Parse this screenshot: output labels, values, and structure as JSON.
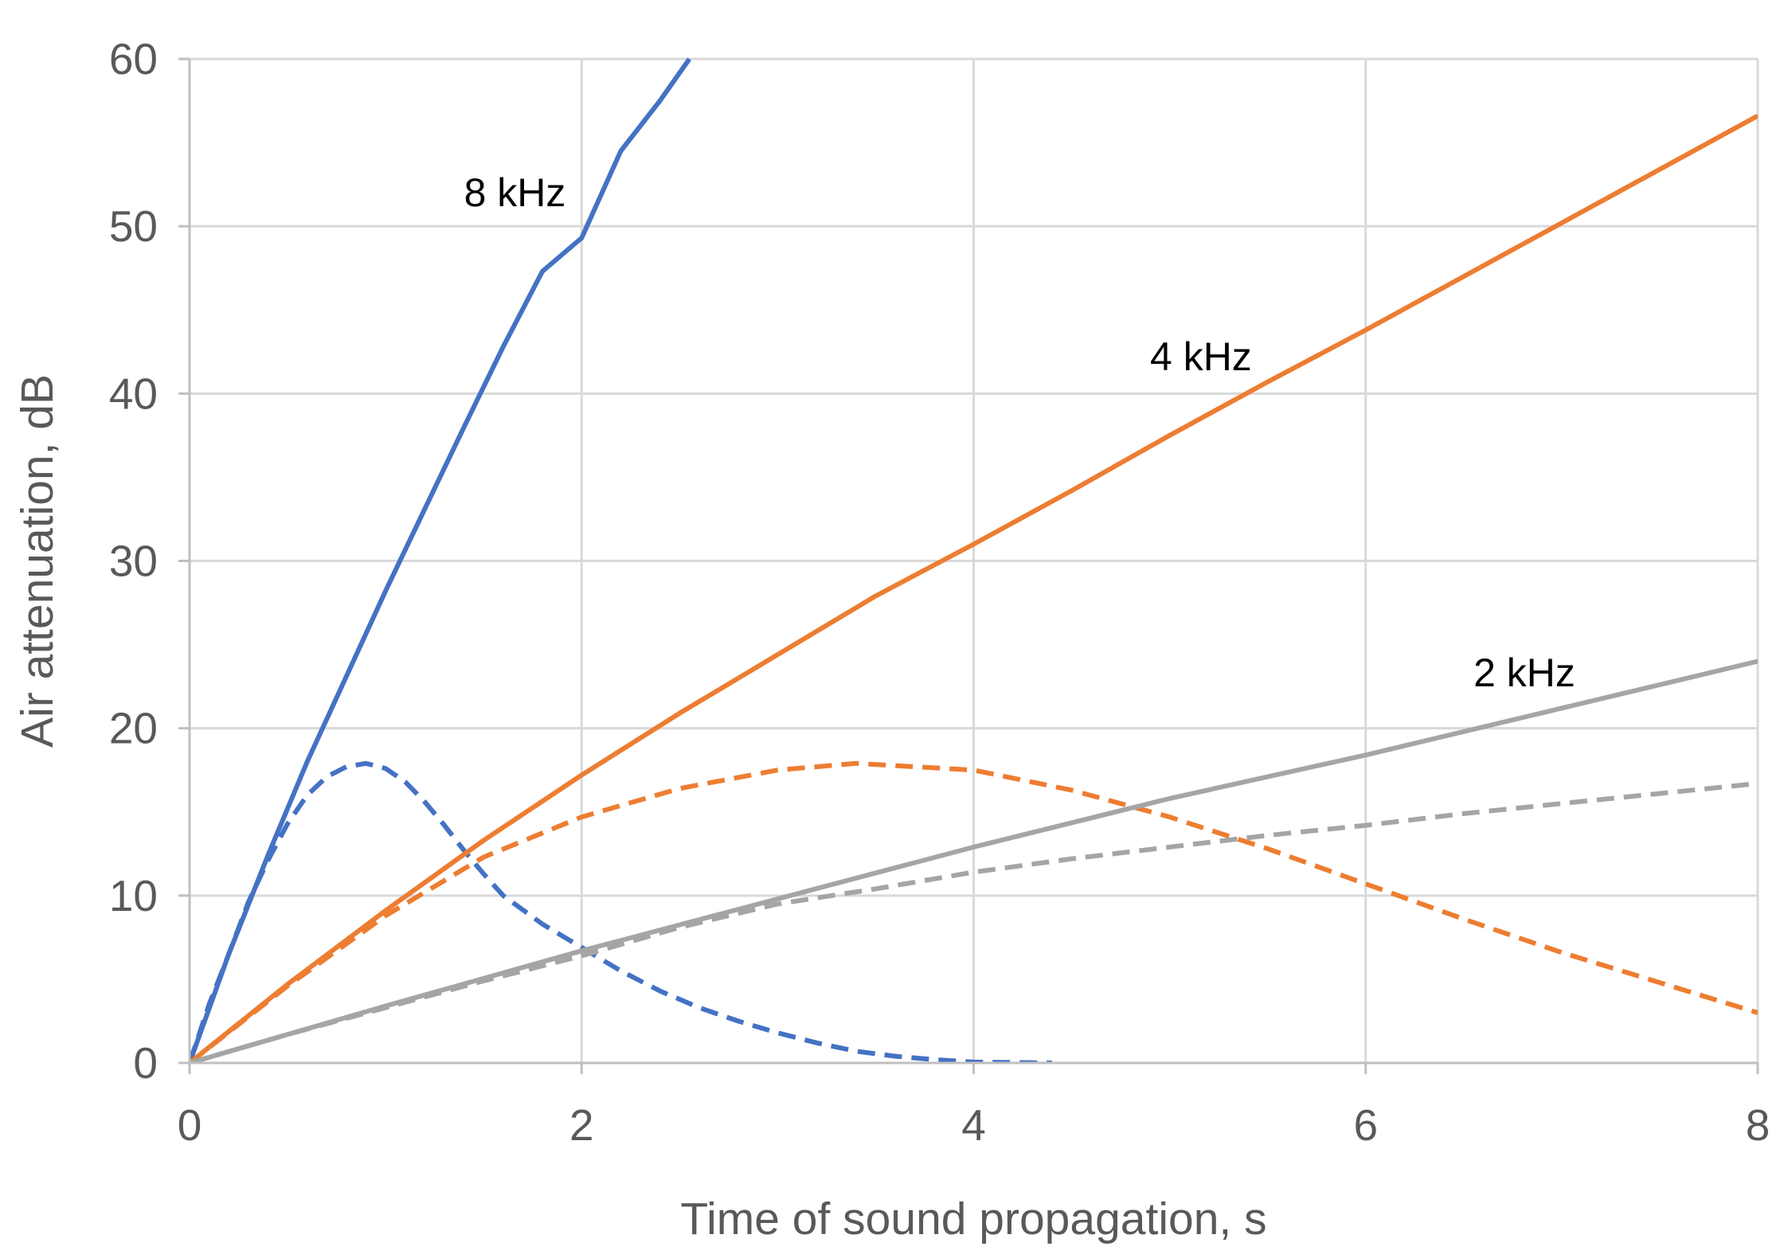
{
  "chart_data": {
    "type": "line",
    "xlabel": "Time of sound propagation, s",
    "ylabel": "Air attenuation, dB",
    "xlim": [
      0,
      8
    ],
    "ylim": [
      0,
      60
    ],
    "xticks": [
      0,
      2,
      4,
      6,
      8
    ],
    "yticks": [
      0,
      10,
      20,
      30,
      40,
      50,
      60
    ],
    "grid": true,
    "legend": "none (inline labels)",
    "series": [
      {
        "name": "8 kHz",
        "color": "#4472c4",
        "style": "solid",
        "x": [
          0,
          0.2,
          0.4,
          0.6,
          0.8,
          1.0,
          1.2,
          1.4,
          1.6,
          1.8,
          2.0,
          2.2,
          2.4,
          2.55
        ],
        "y": [
          0,
          6.5,
          12.4,
          18.0,
          23.1,
          28.2,
          33.1,
          38.0,
          42.8,
          47.3,
          49.3,
          54.5,
          57.5,
          60.0
        ]
      },
      {
        "name": "8 kHz",
        "color": "#4472c4",
        "style": "dashed",
        "x": [
          0,
          0.1,
          0.2,
          0.3,
          0.4,
          0.5,
          0.6,
          0.7,
          0.8,
          0.9,
          1.0,
          1.1,
          1.2,
          1.3,
          1.4,
          1.5,
          1.6,
          1.8,
          2.0,
          2.2,
          2.4,
          2.6,
          2.8,
          3.0,
          3.2,
          3.4,
          3.6,
          3.8,
          4.0,
          4.4
        ],
        "y": [
          0,
          3.5,
          6.5,
          9.6,
          12.1,
          14.3,
          16.0,
          17.1,
          17.7,
          17.9,
          17.6,
          16.8,
          15.6,
          14.2,
          12.7,
          11.3,
          10.0,
          8.3,
          6.9,
          5.5,
          4.3,
          3.3,
          2.5,
          1.8,
          1.2,
          0.7,
          0.4,
          0.2,
          0.05,
          0
        ]
      },
      {
        "name": "4 kHz",
        "color": "#ed7d31",
        "style": "solid",
        "x": [
          0,
          0.5,
          1.0,
          1.5,
          2.0,
          2.5,
          3.0,
          3.5,
          4.0,
          4.5,
          5.0,
          5.5,
          6.0,
          6.5,
          7.0,
          7.5,
          8.0
        ],
        "y": [
          0,
          4.7,
          9.1,
          13.3,
          17.2,
          20.9,
          24.4,
          27.9,
          31.0,
          34.2,
          37.5,
          40.7,
          43.8,
          47.0,
          50.2,
          53.4,
          56.6
        ]
      },
      {
        "name": "4 kHz",
        "color": "#ed7d31",
        "style": "dashed",
        "x": [
          0,
          0.5,
          1.0,
          1.5,
          2.0,
          2.5,
          3.0,
          3.4,
          4.0,
          4.5,
          5.0,
          5.5,
          6.0,
          6.5,
          7.0,
          7.5,
          8.0
        ],
        "y": [
          0,
          4.6,
          8.8,
          12.3,
          14.7,
          16.4,
          17.5,
          17.9,
          17.5,
          16.3,
          14.7,
          12.8,
          10.7,
          8.6,
          6.6,
          4.8,
          3.0
        ]
      },
      {
        "name": "2 kHz",
        "color": "#a5a5a5",
        "style": "solid",
        "x": [
          0,
          1,
          2,
          3,
          4,
          5,
          6,
          7,
          8
        ],
        "y": [
          0,
          3.4,
          6.7,
          9.8,
          12.9,
          15.8,
          18.4,
          21.2,
          24.0
        ]
      },
      {
        "name": "2 kHz",
        "color": "#a5a5a5",
        "style": "dashed",
        "x": [
          0,
          0.5,
          1,
          1.5,
          2,
          2.5,
          3,
          3.5,
          4,
          4.5,
          5,
          5.5,
          6,
          6.5,
          7,
          7.5,
          8
        ],
        "y": [
          0,
          1.7,
          3.3,
          4.9,
          6.4,
          8.1,
          9.5,
          10.4,
          11.4,
          12.2,
          12.9,
          13.6,
          14.2,
          14.9,
          15.5,
          16.1,
          16.7
        ]
      }
    ],
    "annotations": [
      "8 kHz",
      "4 kHz",
      "2 kHz"
    ]
  }
}
